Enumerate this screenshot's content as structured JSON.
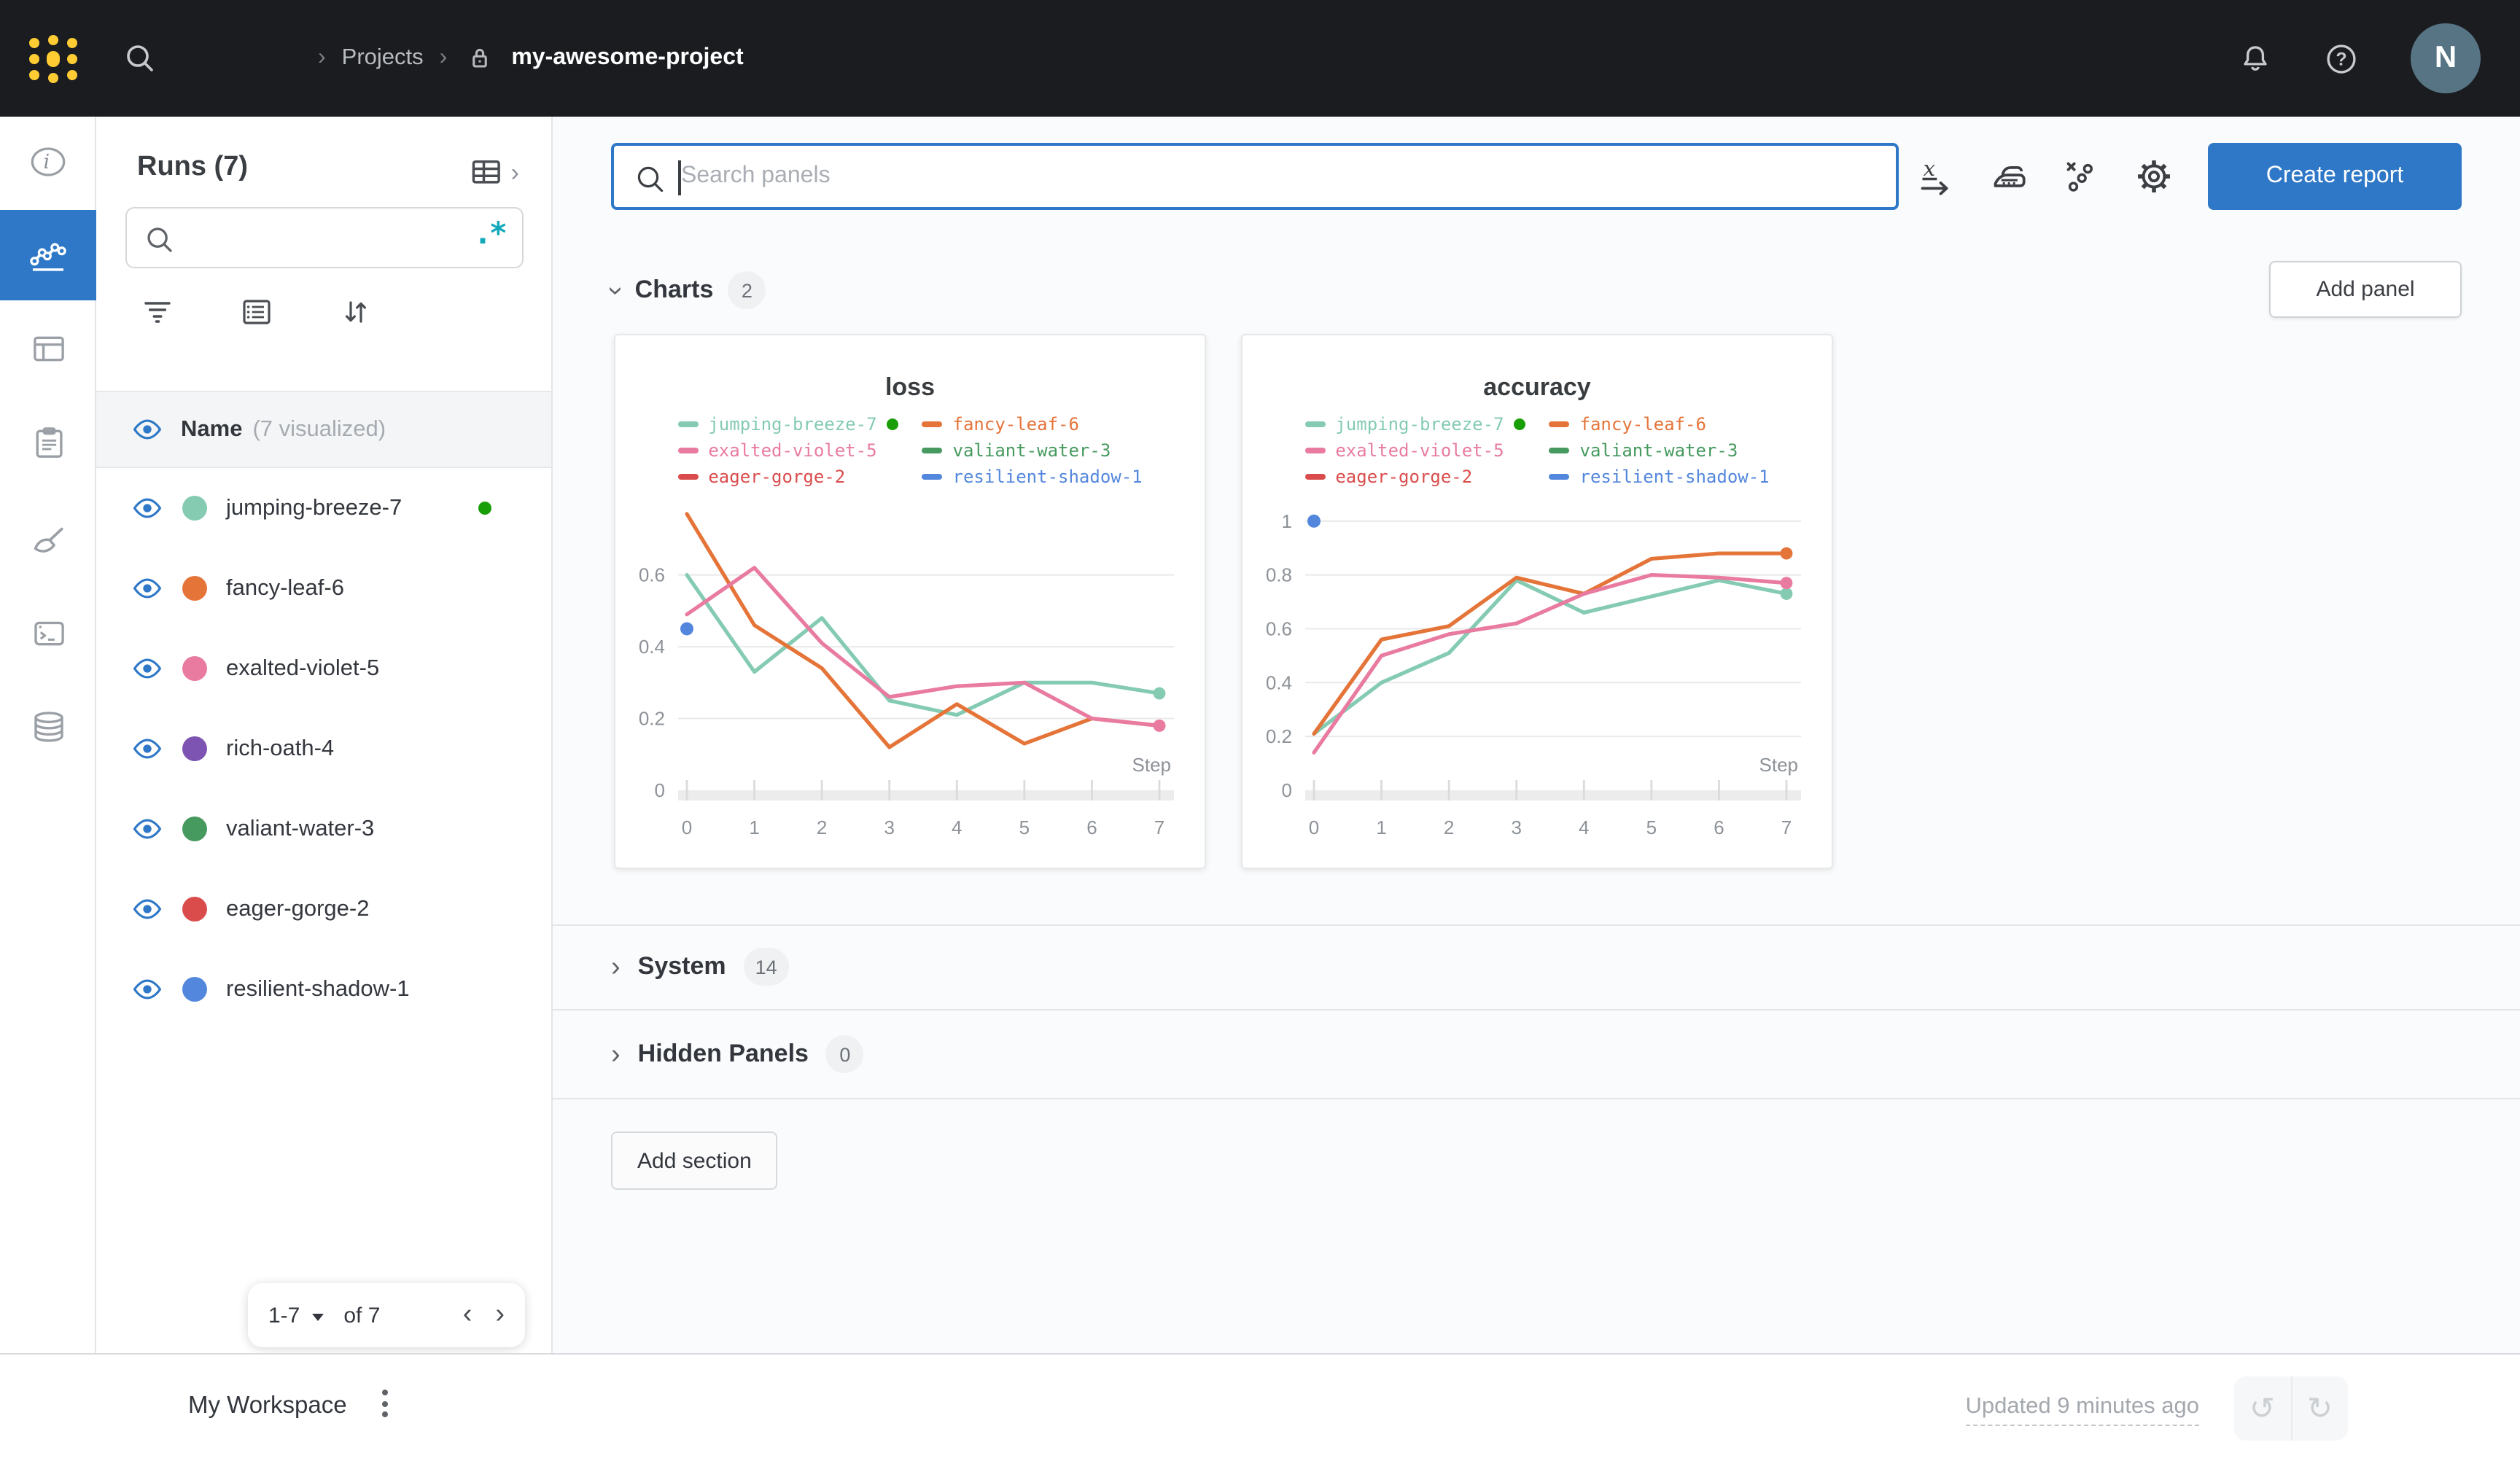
{
  "topbar": {
    "breadcrumb": {
      "projects": "Projects",
      "project_name": "my-awesome-project"
    },
    "avatar_initial": "N"
  },
  "runs_panel": {
    "title": "Runs (7)",
    "search_placeholder": "",
    "regex_glyph": ".*",
    "header": {
      "name": "Name",
      "visualized": "(7 visualized)"
    },
    "runs": [
      {
        "name": "jumping-breeze-7",
        "color": "#84CBB2",
        "running": true
      },
      {
        "name": "fancy-leaf-6",
        "color": "#E57439"
      },
      {
        "name": "exalted-violet-5",
        "color": "#E87B9F"
      },
      {
        "name": "rich-oath-4",
        "color": "#7D54B2"
      },
      {
        "name": "valiant-water-3",
        "color": "#479A5F"
      },
      {
        "name": "eager-gorge-2",
        "color": "#DA4C4C"
      },
      {
        "name": "resilient-shadow-1",
        "color": "#5387DD"
      }
    ],
    "pagination": {
      "range": "1-7",
      "of": "of 7",
      "prev": "‹",
      "next": "›"
    }
  },
  "main": {
    "search_placeholder": "Search panels",
    "create_report_label": "Create report",
    "add_panel_label": "Add panel",
    "sections": {
      "charts": {
        "label": "Charts",
        "count": "2"
      },
      "system": {
        "label": "System",
        "count": "14"
      },
      "hidden": {
        "label": "Hidden Panels",
        "count": "0"
      }
    },
    "add_section_label": "Add section"
  },
  "footer": {
    "workspace_label": "My Workspace",
    "updated_label": "Updated 9 minutes ago",
    "undo_glyph": "↺",
    "redo_glyph": "↻"
  },
  "colors": {
    "accent": "#2E78C7",
    "running_green": "#1A9E07",
    "topbar": "#1a1c20",
    "logo_gold": "#FFCC33"
  },
  "chart_data": [
    {
      "type": "line",
      "title": "loss",
      "xlabel": "Step",
      "x": [
        0,
        1,
        2,
        3,
        4,
        5,
        6,
        7
      ],
      "x_ticks": [
        0,
        1,
        2,
        3,
        4,
        5,
        6,
        7
      ],
      "x_max": 7,
      "y_ticks": [
        0,
        0.2,
        0.4,
        0.6
      ],
      "y_max": 0.78,
      "grid": true,
      "legend_position": "top",
      "series": [
        {
          "name": "jumping-breeze-7",
          "color": "#84CBB2",
          "values": [
            0.6,
            0.33,
            0.48,
            0.25,
            0.21,
            0.3,
            0.3,
            0.27
          ],
          "end_dot": true
        },
        {
          "name": "fancy-leaf-6",
          "color": "#E57439",
          "values": [
            0.77,
            0.46,
            0.34,
            0.12,
            0.24,
            0.13,
            0.2,
            0.18
          ],
          "end_dot": true
        },
        {
          "name": "exalted-violet-5",
          "color": "#E87B9F",
          "values": [
            0.49,
            0.62,
            0.41,
            0.26,
            0.29,
            0.3,
            0.2,
            0.18
          ],
          "end_dot": true
        },
        {
          "name": "resilient-shadow-1",
          "color": "#5387DD",
          "values": [
            0.45
          ],
          "point_only": true
        }
      ],
      "legend": [
        {
          "name": "jumping-breeze-7",
          "color": "#84CBB2",
          "running": true
        },
        {
          "name": "fancy-leaf-6",
          "color": "#E57439"
        },
        {
          "name": "exalted-violet-5",
          "color": "#E87B9F"
        },
        {
          "name": "valiant-water-3",
          "color": "#479A5F"
        },
        {
          "name": "eager-gorge-2",
          "color": "#DA4C4C"
        },
        {
          "name": "resilient-shadow-1",
          "color": "#5387DD"
        }
      ]
    },
    {
      "type": "line",
      "title": "accuracy",
      "xlabel": "Step",
      "x": [
        0,
        1,
        2,
        3,
        4,
        5,
        6,
        7
      ],
      "x_ticks": [
        0,
        1,
        2,
        3,
        4,
        5,
        6,
        7
      ],
      "x_max": 7,
      "y_ticks": [
        0,
        0.2,
        0.4,
        0.6,
        0.8,
        1
      ],
      "y_max": 1.04,
      "grid": true,
      "legend_position": "top",
      "series": [
        {
          "name": "jumping-breeze-7",
          "color": "#84CBB2",
          "values": [
            0.21,
            0.4,
            0.51,
            0.78,
            0.66,
            0.72,
            0.78,
            0.73
          ],
          "end_dot": true
        },
        {
          "name": "fancy-leaf-6",
          "color": "#E57439",
          "values": [
            0.21,
            0.56,
            0.61,
            0.79,
            0.73,
            0.86,
            0.88,
            0.88
          ],
          "end_dot": true
        },
        {
          "name": "exalted-violet-5",
          "color": "#E87B9F",
          "values": [
            0.14,
            0.5,
            0.58,
            0.62,
            0.73,
            0.8,
            0.79,
            0.77
          ],
          "end_dot": true
        },
        {
          "name": "resilient-shadow-1",
          "color": "#5387DD",
          "values": [
            1.0
          ],
          "point_only": true
        }
      ],
      "legend": [
        {
          "name": "jumping-breeze-7",
          "color": "#84CBB2",
          "running": true
        },
        {
          "name": "fancy-leaf-6",
          "color": "#E57439"
        },
        {
          "name": "exalted-violet-5",
          "color": "#E87B9F"
        },
        {
          "name": "valiant-water-3",
          "color": "#479A5F"
        },
        {
          "name": "eager-gorge-2",
          "color": "#DA4C4C"
        },
        {
          "name": "resilient-shadow-1",
          "color": "#5387DD"
        }
      ]
    }
  ]
}
